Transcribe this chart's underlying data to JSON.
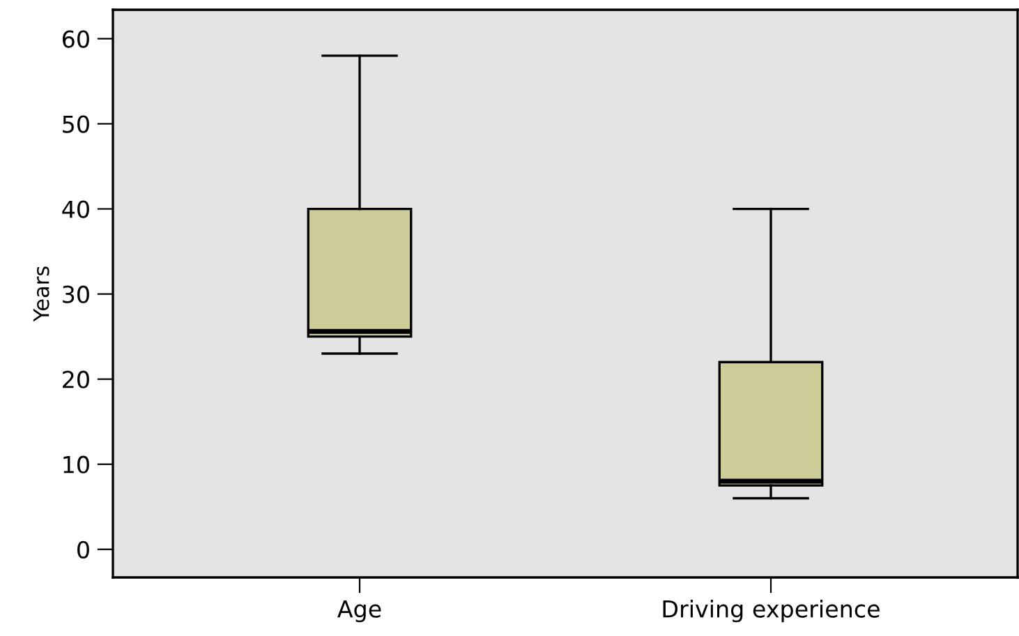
{
  "chart_data": {
    "type": "box",
    "ylabel": "Years",
    "categories": [
      "Age",
      "Driving experience"
    ],
    "boxes": [
      {
        "low": 23,
        "q1": 25,
        "median": 25.6,
        "q3": 40,
        "high": 58
      },
      {
        "low": 6,
        "q1": 7.5,
        "median": 8,
        "q3": 22,
        "high": 40
      }
    ],
    "color": "#cccc99",
    "ylim": [
      -3.3,
      63.4
    ],
    "yticks": [
      0,
      10,
      20,
      30,
      40,
      50,
      60
    ],
    "grid": false
  }
}
